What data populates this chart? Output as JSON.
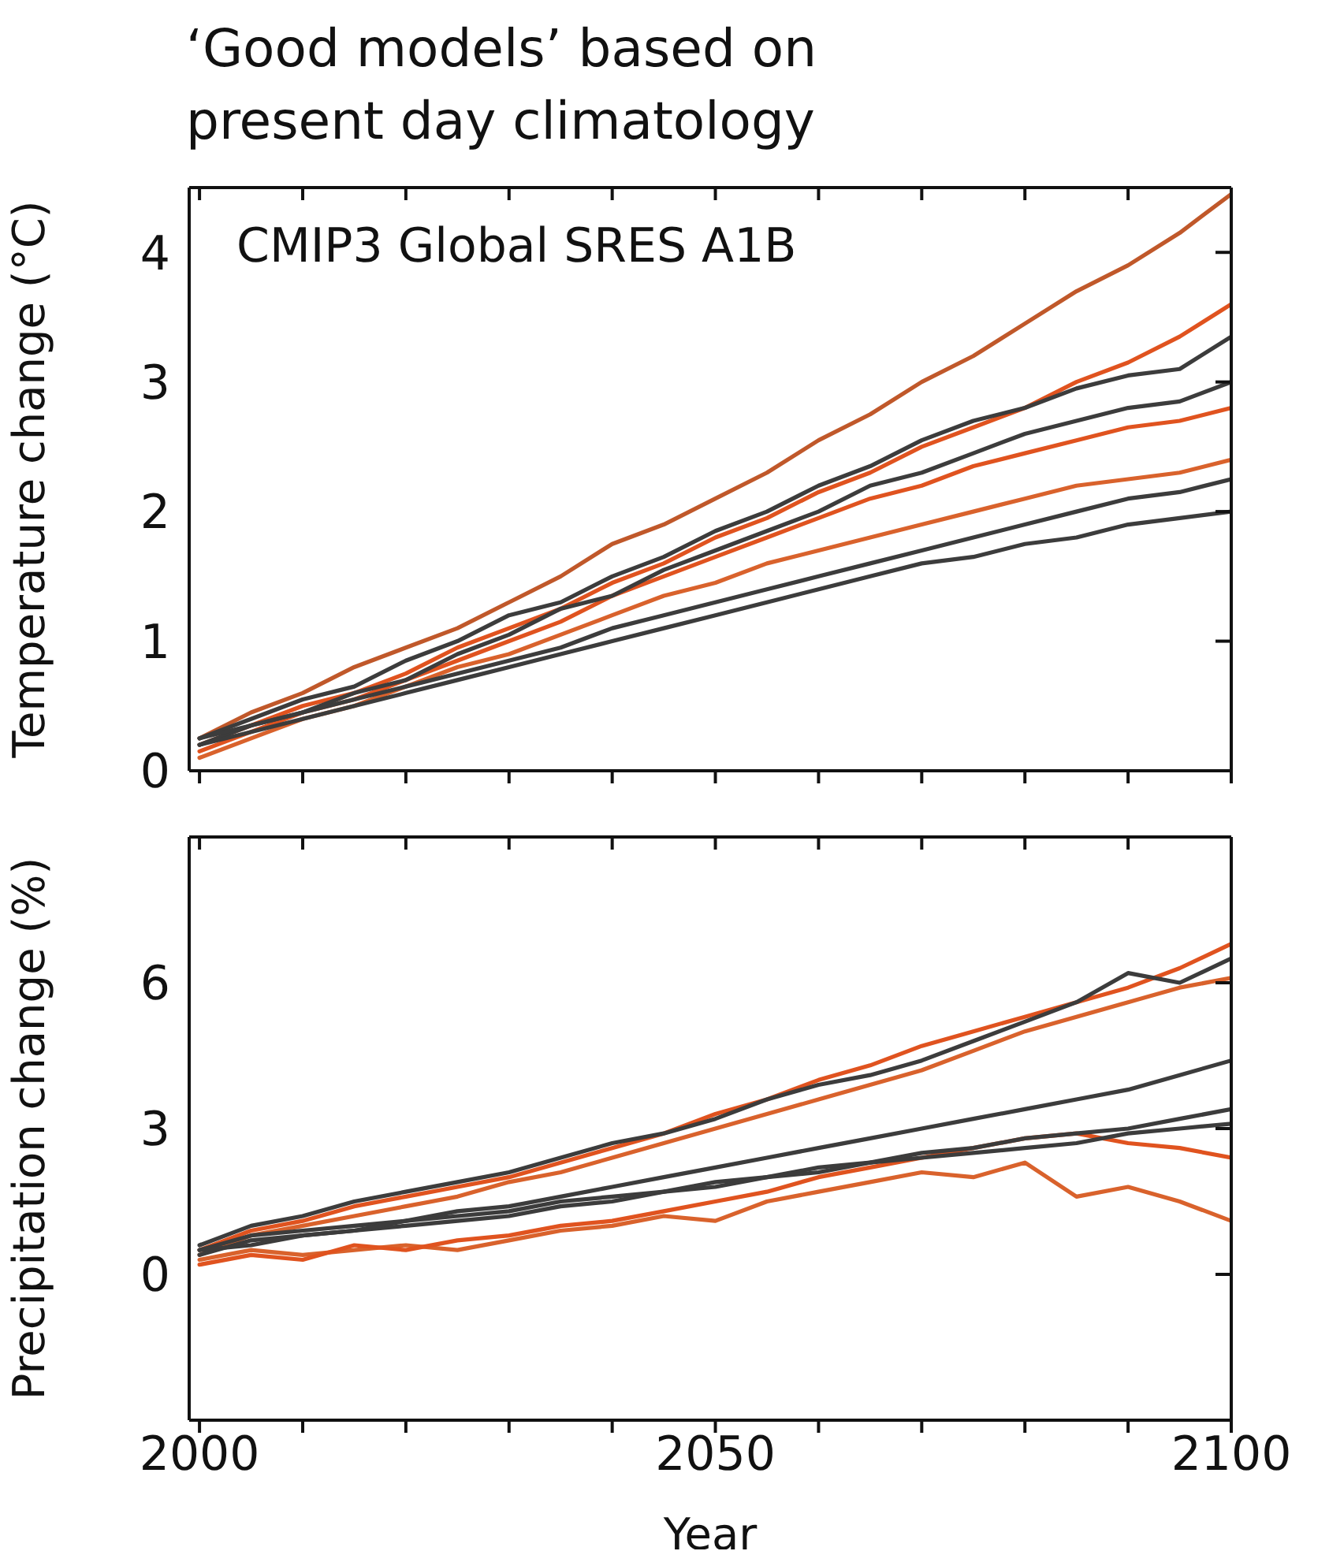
{
  "chart_data": [
    {
      "type": "line",
      "title": "‘Good models’ based on present day climatology",
      "ylabel": "Temperature change (°C)",
      "annotations": [
        "CMIP3 Global SRES A1B"
      ],
      "x": [
        2000,
        2005,
        2010,
        2015,
        2020,
        2025,
        2030,
        2035,
        2040,
        2045,
        2050,
        2055,
        2060,
        2065,
        2070,
        2075,
        2080,
        2085,
        2090,
        2095,
        2100
      ],
      "series": [
        {
          "color": "#c0582a",
          "values": [
            0.25,
            0.45,
            0.6,
            0.8,
            0.95,
            1.1,
            1.3,
            1.5,
            1.75,
            1.9,
            2.1,
            2.3,
            2.55,
            2.75,
            3.0,
            3.2,
            3.45,
            3.7,
            3.9,
            4.15,
            4.45
          ]
        },
        {
          "color": "#e0531f",
          "values": [
            0.2,
            0.35,
            0.5,
            0.6,
            0.75,
            0.95,
            1.1,
            1.25,
            1.45,
            1.6,
            1.8,
            1.95,
            2.15,
            2.3,
            2.5,
            2.65,
            2.8,
            3.0,
            3.15,
            3.35,
            3.6
          ]
        },
        {
          "color": "#e0531f",
          "values": [
            0.15,
            0.3,
            0.45,
            0.55,
            0.7,
            0.85,
            1.0,
            1.15,
            1.35,
            1.5,
            1.65,
            1.8,
            1.95,
            2.1,
            2.2,
            2.35,
            2.45,
            2.55,
            2.65,
            2.7,
            2.8
          ]
        },
        {
          "color": "#d9622c",
          "values": [
            0.1,
            0.25,
            0.4,
            0.5,
            0.65,
            0.8,
            0.9,
            1.05,
            1.2,
            1.35,
            1.45,
            1.6,
            1.7,
            1.8,
            1.9,
            2.0,
            2.1,
            2.2,
            2.25,
            2.3,
            2.4
          ]
        },
        {
          "color": "#3c3c3c",
          "values": [
            0.25,
            0.4,
            0.55,
            0.65,
            0.85,
            1.0,
            1.2,
            1.3,
            1.5,
            1.65,
            1.85,
            2.0,
            2.2,
            2.35,
            2.55,
            2.7,
            2.8,
            2.95,
            3.05,
            3.1,
            3.35
          ]
        },
        {
          "color": "#3c3c3c",
          "values": [
            0.2,
            0.35,
            0.45,
            0.6,
            0.7,
            0.9,
            1.05,
            1.25,
            1.35,
            1.55,
            1.7,
            1.85,
            2.0,
            2.2,
            2.3,
            2.45,
            2.6,
            2.7,
            2.8,
            2.85,
            3.0
          ]
        },
        {
          "color": "#3c3c3c",
          "values": [
            0.2,
            0.3,
            0.4,
            0.5,
            0.6,
            0.7,
            0.8,
            0.9,
            1.0,
            1.1,
            1.2,
            1.3,
            1.4,
            1.5,
            1.6,
            1.65,
            1.75,
            1.8,
            1.9,
            1.95,
            2.0
          ]
        },
        {
          "color": "#3c3c3c",
          "values": [
            0.25,
            0.35,
            0.45,
            0.55,
            0.65,
            0.75,
            0.85,
            0.95,
            1.1,
            1.2,
            1.3,
            1.4,
            1.5,
            1.6,
            1.7,
            1.8,
            1.9,
            2.0,
            2.1,
            2.15,
            2.25
          ]
        }
      ],
      "xlim": [
        1999,
        2100
      ],
      "xticks": [
        2000,
        {
          "value": 2010,
          "label": null
        },
        {
          "value": 2020,
          "label": null
        },
        {
          "value": 2030,
          "label": null
        },
        {
          "value": 2040,
          "label": null
        },
        2050,
        {
          "value": 2060,
          "label": null
        },
        {
          "value": 2070,
          "label": null
        },
        {
          "value": 2080,
          "label": null
        },
        {
          "value": 2090,
          "label": null
        },
        2100
      ],
      "ylim": [
        0,
        4.5
      ],
      "yticks": [
        0,
        1,
        2,
        3,
        4
      ],
      "tick_labels": "y",
      "grid": false,
      "legend": false,
      "marker": "none",
      "line_style": "solid"
    },
    {
      "type": "line",
      "xlabel": "Year",
      "ylabel": "Precipitation change (%)",
      "x": [
        2000,
        2005,
        2010,
        2015,
        2020,
        2025,
        2030,
        2035,
        2040,
        2045,
        2050,
        2055,
        2060,
        2065,
        2070,
        2075,
        2080,
        2085,
        2090,
        2095,
        2100
      ],
      "series": [
        {
          "color": "#e0531f",
          "values": [
            0.5,
            0.9,
            1.1,
            1.4,
            1.6,
            1.8,
            2.0,
            2.3,
            2.6,
            2.9,
            3.3,
            3.6,
            4.0,
            4.3,
            4.7,
            5.0,
            5.3,
            5.6,
            5.9,
            6.3,
            6.8
          ]
        },
        {
          "color": "#d9622c",
          "values": [
            0.4,
            0.8,
            1.0,
            1.2,
            1.4,
            1.6,
            1.9,
            2.1,
            2.4,
            2.7,
            3.0,
            3.3,
            3.6,
            3.9,
            4.2,
            4.6,
            5.0,
            5.3,
            5.6,
            5.9,
            6.1
          ]
        },
        {
          "color": "#d9622c",
          "values": [
            0.3,
            0.5,
            0.4,
            0.5,
            0.6,
            0.5,
            0.7,
            0.9,
            1.0,
            1.2,
            1.1,
            1.5,
            1.7,
            1.9,
            2.1,
            2.0,
            2.3,
            1.6,
            1.8,
            1.5,
            1.1
          ]
        },
        {
          "color": "#e0531f",
          "values": [
            0.2,
            0.4,
            0.3,
            0.6,
            0.5,
            0.7,
            0.8,
            1.0,
            1.1,
            1.3,
            1.5,
            1.7,
            2.0,
            2.2,
            2.4,
            2.6,
            2.8,
            2.9,
            2.7,
            2.6,
            2.4
          ]
        },
        {
          "color": "#3c3c3c",
          "values": [
            0.6,
            1.0,
            1.2,
            1.5,
            1.7,
            1.9,
            2.1,
            2.4,
            2.7,
            2.9,
            3.2,
            3.6,
            3.9,
            4.1,
            4.4,
            4.8,
            5.2,
            5.6,
            6.2,
            6.0,
            6.5
          ]
        },
        {
          "color": "#3c3c3c",
          "values": [
            0.5,
            0.8,
            0.9,
            1.0,
            1.1,
            1.3,
            1.4,
            1.6,
            1.8,
            2.0,
            2.2,
            2.4,
            2.6,
            2.8,
            3.0,
            3.2,
            3.4,
            3.6,
            3.8,
            4.1,
            4.4
          ]
        },
        {
          "color": "#3c3c3c",
          "values": [
            0.4,
            0.7,
            0.8,
            0.9,
            1.0,
            1.1,
            1.2,
            1.4,
            1.5,
            1.7,
            1.8,
            2.0,
            2.2,
            2.3,
            2.5,
            2.6,
            2.8,
            2.9,
            3.0,
            3.2,
            3.4
          ]
        },
        {
          "color": "#3c3c3c",
          "values": [
            0.5,
            0.6,
            0.8,
            0.9,
            1.1,
            1.2,
            1.3,
            1.5,
            1.6,
            1.7,
            1.9,
            2.0,
            2.1,
            2.3,
            2.4,
            2.5,
            2.6,
            2.7,
            2.9,
            3.0,
            3.1
          ]
        }
      ],
      "xlim": [
        1999,
        2100
      ],
      "xticks": [
        2000,
        {
          "value": 2010,
          "label": null
        },
        {
          "value": 2020,
          "label": null
        },
        {
          "value": 2030,
          "label": null
        },
        {
          "value": 2040,
          "label": null
        },
        2050,
        {
          "value": 2060,
          "label": null
        },
        {
          "value": 2070,
          "label": null
        },
        {
          "value": 2080,
          "label": null
        },
        {
          "value": 2090,
          "label": null
        },
        2100
      ],
      "ylim": [
        -3,
        9
      ],
      "yticks": [
        0,
        3,
        6
      ],
      "grid": false,
      "legend": false,
      "marker": "none",
      "line_style": "solid"
    }
  ]
}
